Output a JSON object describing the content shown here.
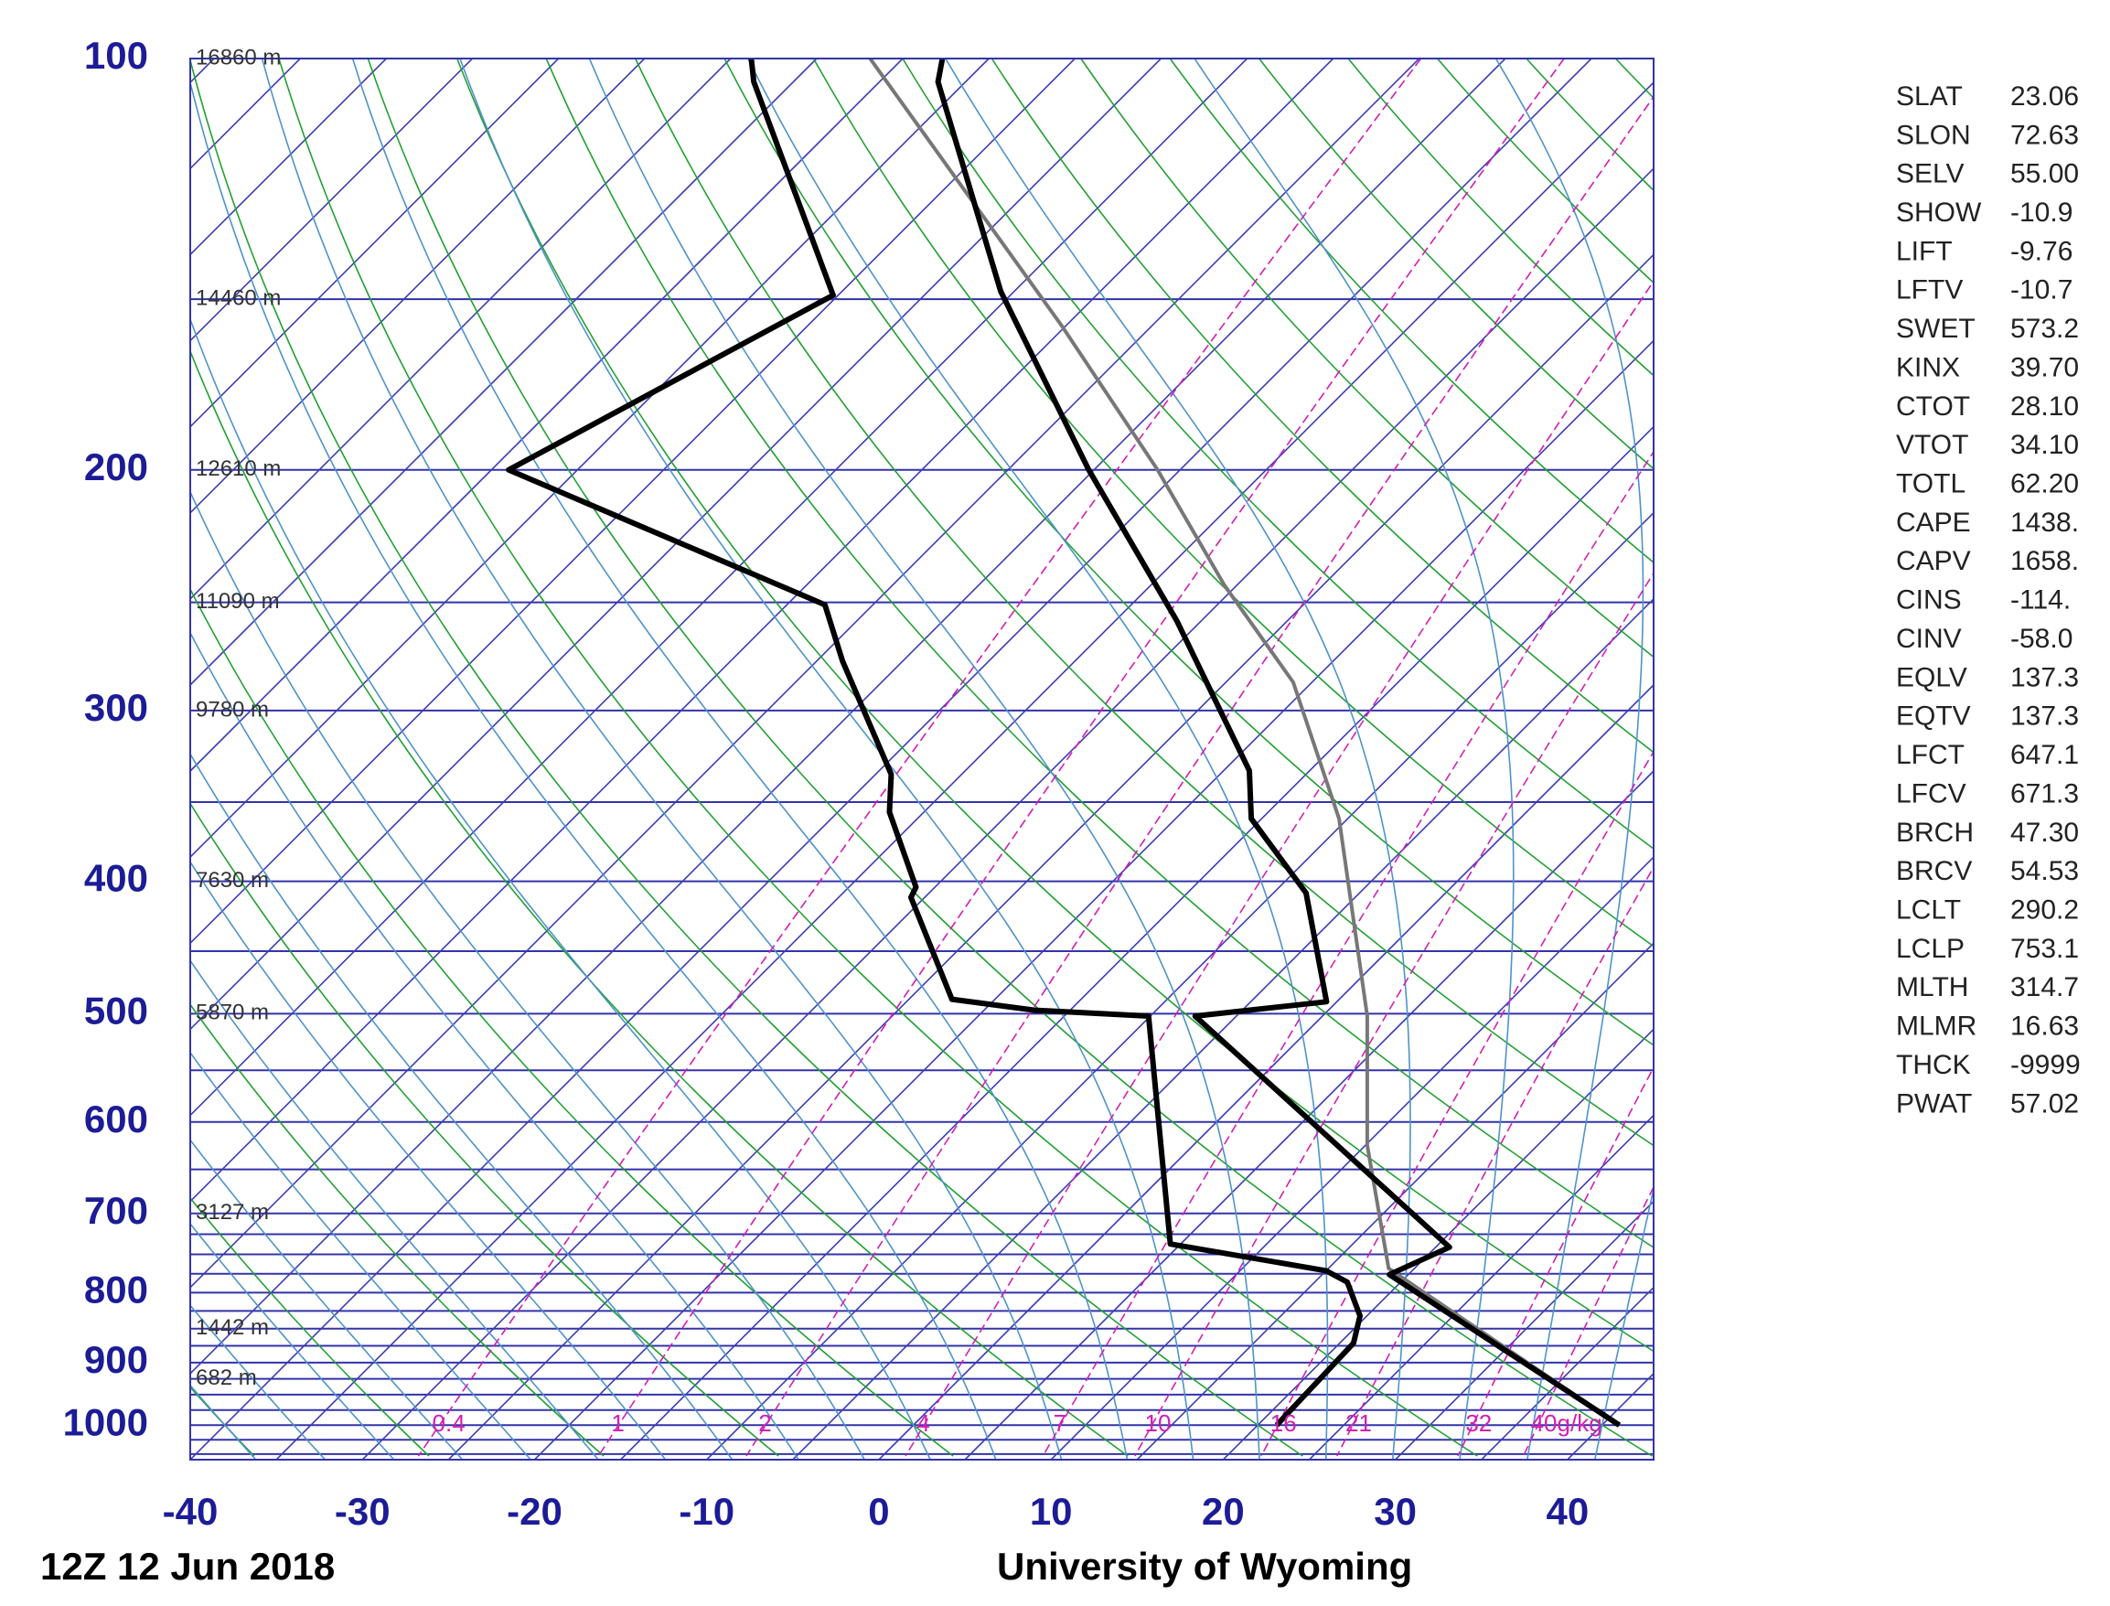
{
  "chart_data": {
    "type": "skew-t",
    "xlim": [
      -40,
      45
    ],
    "xticks": [
      -40,
      -30,
      -20,
      -10,
      0,
      10,
      20,
      30,
      40
    ],
    "ylim": [
      100,
      1060
    ],
    "log_y": true,
    "yticks": [
      100,
      200,
      300,
      400,
      500,
      600,
      700,
      800,
      900,
      1000
    ],
    "isobars": [
      100,
      150,
      200,
      250,
      300,
      350,
      400,
      450,
      500,
      550,
      600,
      650,
      700,
      725,
      750,
      775,
      800,
      825,
      850,
      875,
      900,
      925,
      950,
      975,
      1000,
      1025,
      1050
    ],
    "isotherm_interval": 5,
    "dry_adiabat_interval": 10,
    "moist_adiabat_interval": 4,
    "mixing_ratios": [
      {
        "value": 0.4,
        "label": "0.4"
      },
      {
        "value": 1,
        "label": "1"
      },
      {
        "value": 2,
        "label": "2"
      },
      {
        "value": 4,
        "label": "4"
      },
      {
        "value": 7,
        "label": "7"
      },
      {
        "value": 10,
        "label": "10"
      },
      {
        "value": 16,
        "label": "16"
      },
      {
        "value": 21,
        "label": "21"
      },
      {
        "value": 32,
        "label": "32"
      },
      {
        "value": 40,
        "label": "40g/kg"
      }
    ],
    "height_labels": [
      {
        "pressure": 100,
        "label": "16860 m"
      },
      {
        "pressure": 150,
        "label": "14460 m"
      },
      {
        "pressure": 200,
        "label": "12610 m"
      },
      {
        "pressure": 250,
        "label": "11090 m"
      },
      {
        "pressure": 300,
        "label": "9780 m"
      },
      {
        "pressure": 400,
        "label": "7630 m"
      },
      {
        "pressure": 500,
        "label": "5870 m"
      },
      {
        "pressure": 700,
        "label": "3127 m"
      },
      {
        "pressure": 850,
        "label": "1442 m"
      },
      {
        "pressure": 925,
        "label": "682 m"
      }
    ],
    "series": [
      {
        "color": "#777777",
        "pressure": [
          1000,
          768,
          624,
          502,
          360,
          286,
          243,
          200,
          157,
          100
        ],
        "temperature": [
          41.0,
          18.5,
          10.1,
          2.6,
          -10.5,
          -21.1,
          -30.7,
          -41.3,
          -55.2,
          -81.9
        ]
      },
      {
        "color": "#000000",
        "pressure": [
          1000,
          776,
          741,
          502,
          490,
          408,
          360,
          332,
          258,
          200,
          148,
          104,
          100
        ],
        "temperature": [
          41.0,
          18.9,
          20.8,
          -7.4,
          -0.6,
          -8.1,
          -15.6,
          -18.5,
          -31.4,
          -45.3,
          -60.8,
          -76.6,
          -77.7
        ]
      },
      {
        "color": "#000000",
        "pressure": [
          1000,
          871,
          832,
          786,
          771,
          737,
          502,
          497,
          488,
          411,
          404,
          356,
          334,
          276,
          251,
          200,
          149,
          104,
          100
        ],
        "temperature": [
          21.1,
          20.8,
          19.6,
          16.9,
          15.0,
          4.4,
          -10.1,
          -17.1,
          -22.5,
          -30.8,
          -31.1,
          -37.0,
          -39.1,
          -48.5,
          -52.8,
          -79.0,
          -70.3,
          -87.3,
          -88.8
        ]
      }
    ],
    "footer_left": "12Z 12 Jun 2018",
    "footer_right": "University of Wyoming"
  },
  "indices": [
    {
      "name": "SLAT",
      "value": "23.06"
    },
    {
      "name": "SLON",
      "value": "72.63"
    },
    {
      "name": "SELV",
      "value": "55.00"
    },
    {
      "name": "SHOW",
      "value": "-10.9"
    },
    {
      "name": "LIFT",
      "value": "-9.76"
    },
    {
      "name": "LFTV",
      "value": "-10.7"
    },
    {
      "name": "SWET",
      "value": "573.2"
    },
    {
      "name": "KINX",
      "value": "39.70"
    },
    {
      "name": "CTOT",
      "value": "28.10"
    },
    {
      "name": "VTOT",
      "value": "34.10"
    },
    {
      "name": "TOTL",
      "value": "62.20"
    },
    {
      "name": "CAPE",
      "value": "1438."
    },
    {
      "name": "CAPV",
      "value": "1658."
    },
    {
      "name": "CINS",
      "value": "-114."
    },
    {
      "name": "CINV",
      "value": "-58.0"
    },
    {
      "name": "EQLV",
      "value": "137.3"
    },
    {
      "name": "EQTV",
      "value": "137.3"
    },
    {
      "name": "LFCT",
      "value": "647.1"
    },
    {
      "name": "LFCV",
      "value": "671.3"
    },
    {
      "name": "BRCH",
      "value": "47.30"
    },
    {
      "name": "BRCV",
      "value": "54.53"
    },
    {
      "name": "LCLT",
      "value": "290.2"
    },
    {
      "name": "LCLP",
      "value": "753.1"
    },
    {
      "name": "MLTH",
      "value": "314.7"
    },
    {
      "name": "MLMR",
      "value": "16.63"
    },
    {
      "name": "THCK",
      "value": "-9999"
    },
    {
      "name": "PWAT",
      "value": "57.02"
    }
  ]
}
